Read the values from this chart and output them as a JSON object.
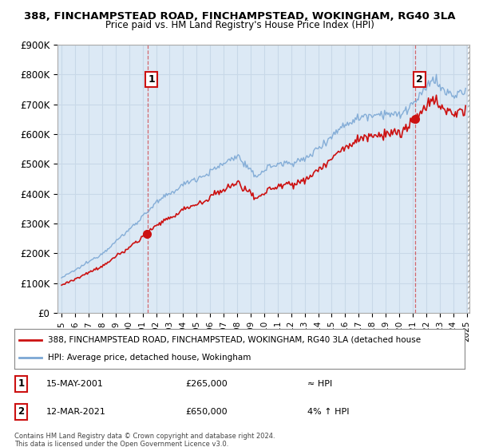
{
  "title_line1": "388, FINCHAMPSTEAD ROAD, FINCHAMPSTEAD, WOKINGHAM, RG40 3LA",
  "title_line2": "Price paid vs. HM Land Registry's House Price Index (HPI)",
  "ylim": [
    0,
    900000
  ],
  "yticks": [
    0,
    100000,
    200000,
    300000,
    400000,
    500000,
    600000,
    700000,
    800000,
    900000
  ],
  "ytick_labels": [
    "£0",
    "£100K",
    "£200K",
    "£300K",
    "£400K",
    "£500K",
    "£600K",
    "£700K",
    "£800K",
    "£900K"
  ],
  "hpi_color": "#7ba7d4",
  "price_color": "#cc1111",
  "grid_color": "#c8d8e8",
  "background_color": "#dce9f5",
  "plot_bg_color": "#dce9f5",
  "sale1_year_f": 2001.37,
  "sale1_price": 265000,
  "sale2_year_f": 2021.19,
  "sale2_price": 650000,
  "legend_line1": "388, FINCHAMPSTEAD ROAD, FINCHAMPSTEAD, WOKINGHAM, RG40 3LA (detached house",
  "legend_line2": "HPI: Average price, detached house, Wokingham",
  "footnote": "Contains HM Land Registry data © Crown copyright and database right 2024.\nThis data is licensed under the Open Government Licence v3.0.",
  "xstart": 1995,
  "xend": 2025
}
